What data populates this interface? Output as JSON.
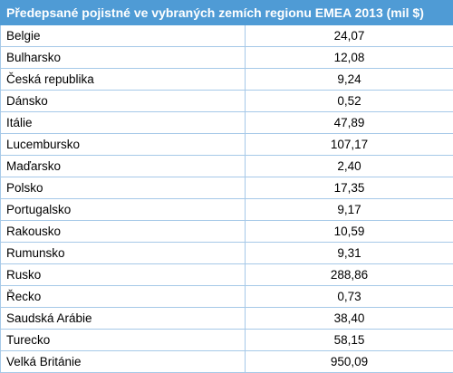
{
  "table": {
    "title": "Předepsané pojistné ve vybraných zemích regionu EMEA 2013 (mil $)",
    "rows": [
      {
        "country": "Belgie",
        "value": "24,07"
      },
      {
        "country": "Bulharsko",
        "value": "12,08"
      },
      {
        "country": "Česká republika",
        "value": "9,24"
      },
      {
        "country": "Dánsko",
        "value": "0,52"
      },
      {
        "country": "Itálie",
        "value": "47,89"
      },
      {
        "country": "Lucembursko",
        "value": "107,17"
      },
      {
        "country": "Maďarsko",
        "value": "2,40"
      },
      {
        "country": "Polsko",
        "value": "17,35"
      },
      {
        "country": "Portugalsko",
        "value": "9,17"
      },
      {
        "country": "Rakousko",
        "value": "10,59"
      },
      {
        "country": "Rumunsko",
        "value": "9,31"
      },
      {
        "country": "Rusko",
        "value": "288,86"
      },
      {
        "country": "Řecko",
        "value": "0,73"
      },
      {
        "country": "Saudská Arábie",
        "value": "38,40"
      },
      {
        "country": "Turecko",
        "value": "58,15"
      },
      {
        "country": "Velká Británie",
        "value": "950,09"
      }
    ]
  },
  "colors": {
    "header_bg": "#4f9bd5",
    "header_text": "#ffffff",
    "grid": "#a6c9e8"
  }
}
